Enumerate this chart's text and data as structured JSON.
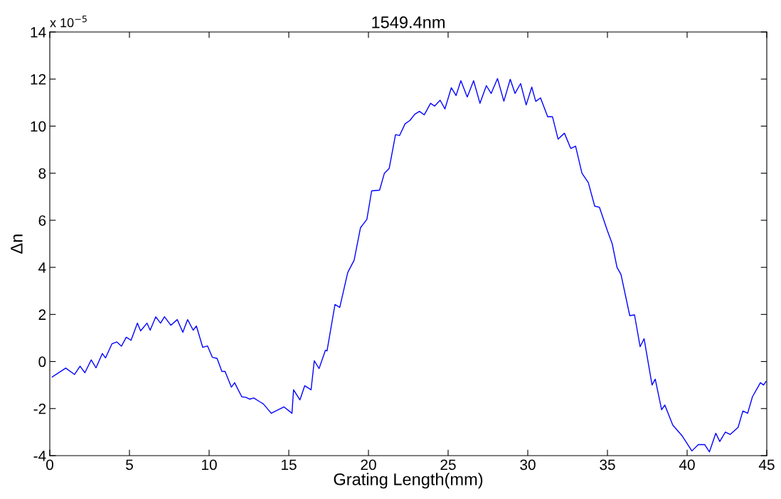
{
  "chart_data": {
    "type": "line",
    "title": "1549.4nm",
    "xlabel": "Grating Length(mm)",
    "ylabel": "Δn",
    "annotations": [
      "x 10$^{−5}$"
    ],
    "xlim": [
      0,
      45
    ],
    "xticks": [
      0,
      5,
      10,
      15,
      20,
      25,
      30,
      35,
      40,
      45
    ],
    "ylim": [
      -4,
      14
    ],
    "yticks": [
      -4,
      -2,
      0,
      2,
      4,
      6,
      8,
      10,
      12,
      14
    ],
    "grid": false,
    "marker": "none",
    "line_style": "solid",
    "series": [
      {
        "color": "#0000ff",
        "x": [
          0.15,
          1.0,
          1.55,
          1.9,
          2.2,
          2.6,
          2.9,
          3.3,
          3.5,
          3.9,
          4.2,
          4.5,
          4.8,
          5.1,
          5.5,
          5.7,
          6.1,
          6.3,
          6.65,
          6.95,
          7.2,
          7.6,
          8.0,
          8.35,
          8.65,
          9.0,
          9.2,
          9.6,
          9.9,
          10.2,
          10.5,
          10.8,
          11.0,
          11.4,
          11.6,
          12.05,
          12.3,
          12.55,
          12.8,
          13.2,
          13.4,
          13.9,
          14.7,
          15.2,
          15.3,
          15.7,
          16.0,
          16.4,
          16.6,
          16.9,
          17.3,
          17.4,
          17.9,
          18.2,
          18.7,
          19.1,
          19.5,
          19.9,
          20.2,
          20.7,
          21.0,
          21.3,
          21.7,
          21.95,
          22.3,
          22.6,
          22.9,
          23.2,
          23.5,
          23.9,
          24.15,
          24.5,
          24.8,
          25.2,
          25.5,
          25.8,
          26.2,
          26.6,
          27.0,
          27.4,
          27.7,
          28.1,
          28.5,
          28.9,
          29.2,
          29.55,
          29.9,
          30.25,
          30.5,
          30.8,
          31.25,
          31.55,
          31.9,
          32.3,
          32.7,
          33.0,
          33.4,
          33.8,
          34.2,
          34.5,
          35.0,
          35.3,
          35.6,
          35.85,
          36.4,
          36.7,
          37.05,
          37.3,
          37.8,
          38.0,
          38.4,
          38.6,
          39.1,
          39.7,
          40.3,
          40.7,
          41.1,
          41.4,
          41.8,
          42.05,
          42.4,
          42.7,
          43.2,
          43.5,
          43.8,
          44.1,
          44.6,
          44.8,
          44.95
        ],
        "values": [
          -0.66,
          -0.28,
          -0.55,
          -0.2,
          -0.48,
          0.07,
          -0.27,
          0.34,
          0.15,
          0.75,
          0.83,
          0.65,
          1.03,
          0.9,
          1.63,
          1.3,
          1.63,
          1.33,
          1.9,
          1.63,
          1.9,
          1.54,
          1.78,
          1.24,
          1.78,
          1.33,
          1.51,
          0.6,
          0.66,
          0.18,
          0.13,
          -0.42,
          -0.42,
          -1.09,
          -0.9,
          -1.5,
          -1.52,
          -1.6,
          -1.55,
          -1.72,
          -1.8,
          -2.2,
          -1.93,
          -2.2,
          -1.2,
          -1.63,
          -1.03,
          -1.2,
          0.03,
          -0.3,
          0.48,
          0.45,
          2.42,
          2.3,
          3.78,
          4.3,
          5.68,
          6.04,
          7.25,
          7.28,
          8.0,
          8.2,
          9.64,
          9.6,
          10.1,
          10.24,
          10.5,
          10.63,
          10.48,
          10.97,
          10.85,
          11.1,
          10.73,
          11.63,
          11.3,
          11.93,
          11.24,
          11.93,
          10.97,
          11.72,
          11.39,
          12.02,
          11.06,
          11.99,
          11.39,
          11.81,
          10.9,
          11.66,
          11.05,
          11.2,
          10.4,
          10.4,
          9.45,
          9.7,
          9.05,
          9.15,
          8.0,
          7.6,
          6.6,
          6.55,
          5.55,
          5.0,
          4.0,
          3.7,
          1.95,
          1.98,
          0.63,
          0.97,
          -1.0,
          -0.75,
          -2.05,
          -1.85,
          -2.7,
          -3.17,
          -3.8,
          -3.53,
          -3.53,
          -3.84,
          -3.05,
          -3.4,
          -3.0,
          -3.1,
          -2.8,
          -2.1,
          -2.2,
          -1.5,
          -0.9,
          -1.0,
          -0.85
        ]
      }
    ]
  }
}
